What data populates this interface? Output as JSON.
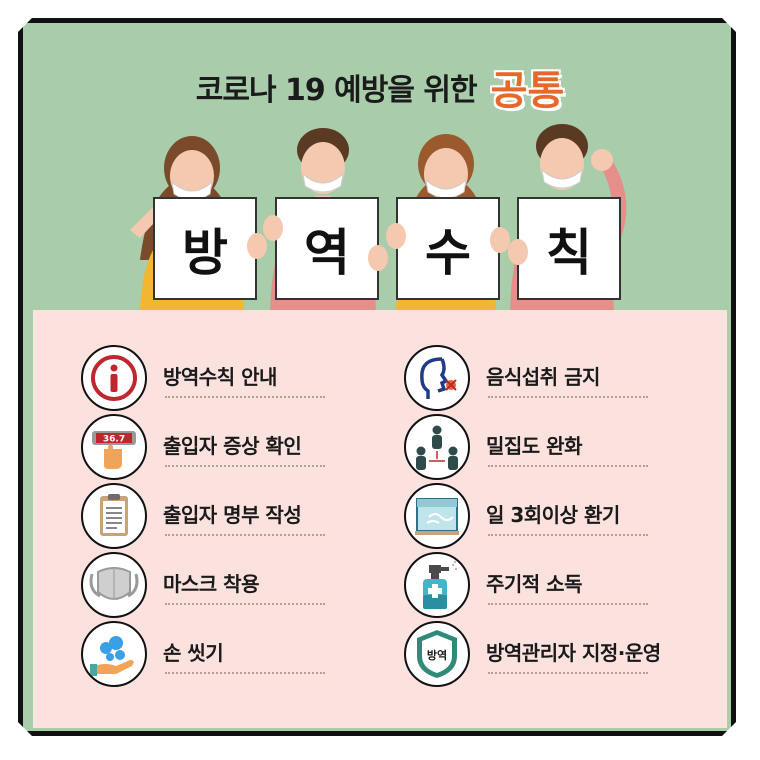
{
  "title": {
    "main": "코로나 19 예방을 위한",
    "accent": "공통"
  },
  "signs": [
    "방",
    "역",
    "수",
    "칙"
  ],
  "thermometer_reading": "36.7",
  "shield_text": "방역",
  "left_items": [
    {
      "label": "방역수칙 안내",
      "icon": "info-icon"
    },
    {
      "label": "출입자 증상 확인",
      "icon": "thermometer-icon"
    },
    {
      "label": "출입자 명부 작성",
      "icon": "clipboard-icon"
    },
    {
      "label": "마스크 착용",
      "icon": "mask-icon"
    },
    {
      "label": "손 씻기",
      "icon": "handwash-icon"
    }
  ],
  "right_items": [
    {
      "label": "음식섭취 금지",
      "icon": "no-eating-icon"
    },
    {
      "label": "밀집도 완화",
      "icon": "distancing-icon"
    },
    {
      "label": "일 3회이상 환기",
      "icon": "window-icon"
    },
    {
      "label": "주기적 소독",
      "icon": "spray-icon"
    },
    {
      "label": "방역관리자 지정·운영",
      "icon": "shield-icon"
    }
  ],
  "colors": {
    "background": "#a9cdaa",
    "panel": "#fbe2df",
    "accent": "#e8672a"
  }
}
